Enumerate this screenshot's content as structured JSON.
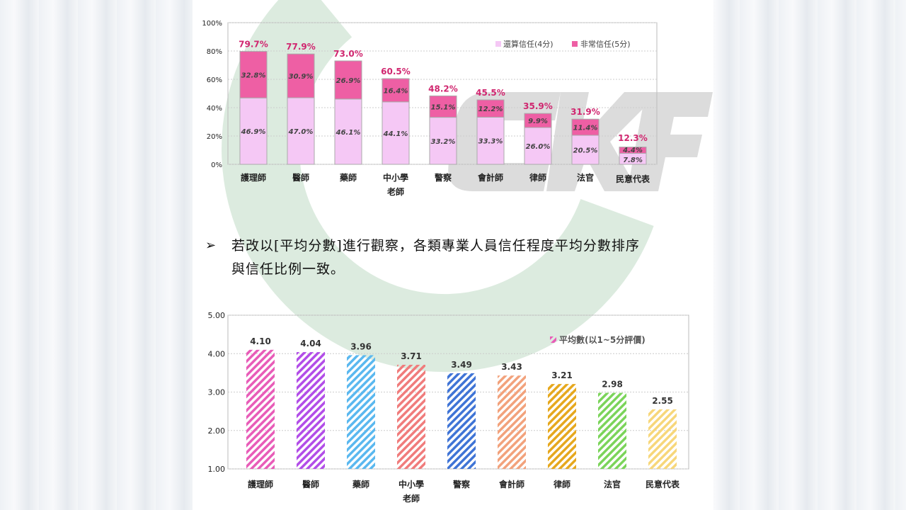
{
  "chart_data": [
    {
      "type": "bar",
      "stacked": true,
      "categories": [
        "護理師",
        "醫師",
        "藥師",
        "中小學\n老師",
        "警察",
        "會計師",
        "律師",
        "法官",
        "民意代表"
      ],
      "series": [
        {
          "name": "還算信任(4分)",
          "color": "#f5c8f5",
          "values": [
            46.9,
            47.0,
            46.1,
            44.1,
            33.2,
            33.3,
            26.0,
            20.5,
            7.8
          ]
        },
        {
          "name": "非常信任(5分)",
          "color": "#ee5fa4",
          "values": [
            32.8,
            30.9,
            26.9,
            16.4,
            15.1,
            12.2,
            9.9,
            11.4,
            4.4
          ]
        }
      ],
      "totals": [
        79.7,
        77.9,
        73.0,
        60.5,
        48.2,
        45.5,
        35.9,
        31.9,
        12.3
      ],
      "yticks": [
        "0%",
        "20%",
        "40%",
        "60%",
        "80%",
        "100%"
      ],
      "ylim": [
        0,
        100
      ],
      "legend": "top-right",
      "grid": true
    },
    {
      "type": "bar",
      "categories": [
        "護理師",
        "醫師",
        "藥師",
        "中小學\n老師",
        "警察",
        "會計師",
        "律師",
        "法官",
        "民意代表"
      ],
      "series": [
        {
          "name": "平均數(以1~5分評價)",
          "values": [
            4.1,
            4.04,
            3.96,
            3.71,
            3.49,
            3.43,
            3.21,
            2.98,
            2.55
          ]
        }
      ],
      "colors": [
        "#e85cb8",
        "#b24de8",
        "#5ab8ef",
        "#f07c7c",
        "#3f74d6",
        "#f2a27c",
        "#e6a81e",
        "#7bd45a",
        "#f7d77a"
      ],
      "labels": [
        "4.10",
        "4.04",
        "3.96",
        "3.71",
        "3.49",
        "3.43",
        "3.21",
        "2.98",
        "2.55"
      ],
      "yticks": [
        "1.00",
        "2.00",
        "3.00",
        "4.00",
        "5.00"
      ],
      "ylim": [
        1,
        5
      ],
      "legend": "top-right",
      "grid": true
    }
  ],
  "text": {
    "bullet": "➢",
    "line1": "若改以[平均分數]進行觀察，各類專業人員信任程度平均分數排序",
    "line2": "與信任比例一致。"
  },
  "watermark": "CKF"
}
